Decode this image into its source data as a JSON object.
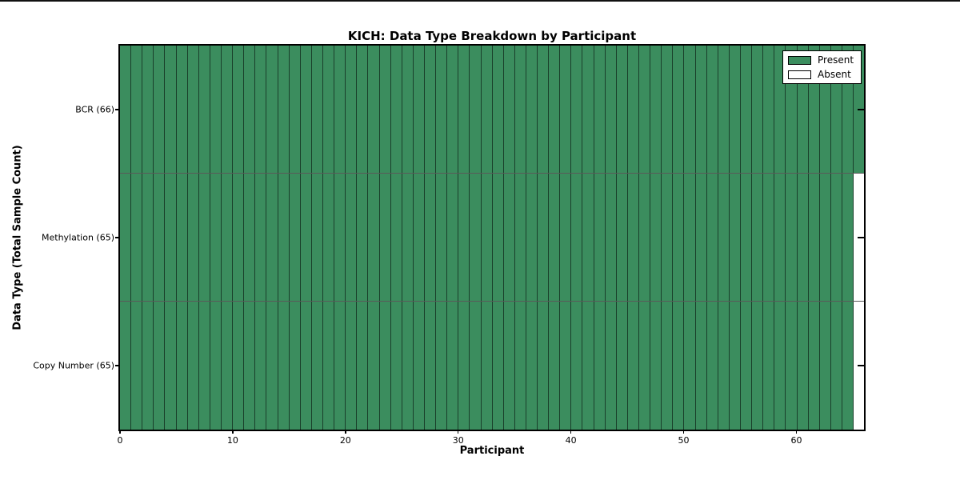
{
  "chart_data": {
    "type": "heatmap",
    "title": "KICH: Data Type Breakdown by Participant",
    "xlabel": "Participant",
    "ylabel": "Data Type (Total Sample Count)",
    "n_participants": 66,
    "xlim": [
      0,
      66
    ],
    "x_ticks": [
      0,
      10,
      20,
      30,
      40,
      50,
      60
    ],
    "grid": false,
    "colors": {
      "present": "#3b8d5e",
      "absent": "#ffffff",
      "cell_edge": "#1c1c1c"
    },
    "rows": [
      {
        "label": "BCR (66)",
        "data_type": "BCR",
        "total_samples": 66,
        "present_count": 66,
        "absent_count": 0,
        "absent_columns": []
      },
      {
        "label": "Methylation (65)",
        "data_type": "Methylation",
        "total_samples": 65,
        "present_count": 65,
        "absent_count": 1,
        "absent_columns": [
          65
        ]
      },
      {
        "label": "Copy Number (65)",
        "data_type": "Copy Number",
        "total_samples": 65,
        "present_count": 65,
        "absent_count": 1,
        "absent_columns": [
          65
        ]
      }
    ],
    "legend": [
      {
        "label": "Present",
        "color": "#3b8d5e"
      },
      {
        "label": "Absent",
        "color": "#ffffff"
      }
    ],
    "legend_position": "upper right"
  }
}
